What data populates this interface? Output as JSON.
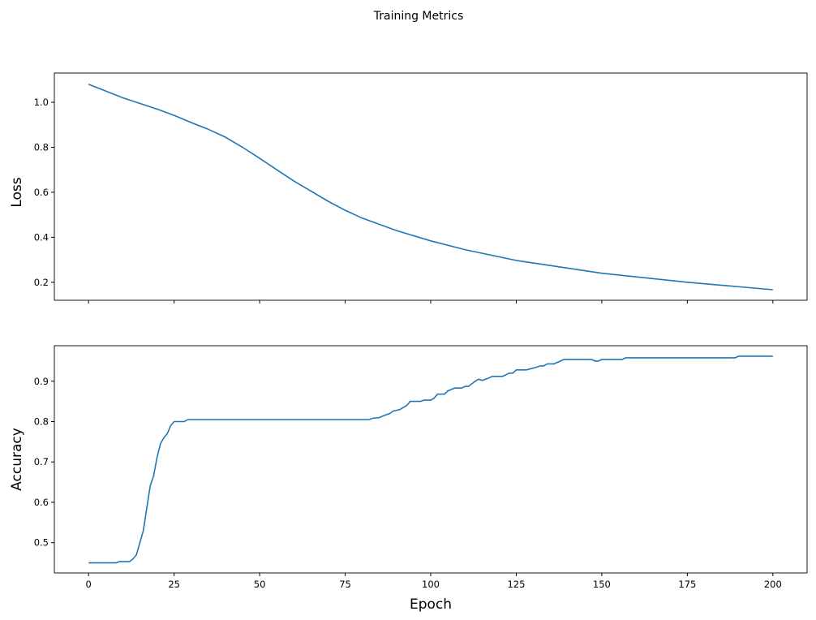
{
  "chart_data": [
    {
      "type": "line",
      "suptitle": "Training Metrics",
      "xlabel": "",
      "ylabel": "Loss",
      "xlim": [
        -10,
        210
      ],
      "ylim": [
        0.12,
        1.13
      ],
      "xticks": [
        0,
        25,
        50,
        75,
        100,
        125,
        150,
        175,
        200
      ],
      "yticks": [
        0.2,
        0.4,
        0.6,
        0.8,
        1.0
      ],
      "ytick_labels": [
        "0.2",
        "0.4",
        "0.6",
        "0.8",
        "1.0"
      ],
      "grid": false,
      "color": "#1f77b4",
      "x": [
        0,
        10,
        20,
        25,
        30,
        35,
        40,
        45,
        50,
        55,
        60,
        65,
        70,
        75,
        80,
        90,
        100,
        110,
        125,
        150,
        175,
        200
      ],
      "y": [
        1.08,
        1.02,
        0.97,
        0.942,
        0.91,
        0.88,
        0.845,
        0.8,
        0.751,
        0.7,
        0.65,
        0.605,
        0.56,
        0.52,
        0.485,
        0.43,
        0.384,
        0.345,
        0.297,
        0.24,
        0.2,
        0.167
      ]
    },
    {
      "type": "line",
      "xlabel": "Epoch",
      "ylabel": "Accuracy",
      "xlim": [
        -10,
        210
      ],
      "ylim": [
        0.425,
        0.988
      ],
      "xticks": [
        0,
        25,
        50,
        75,
        100,
        125,
        150,
        175,
        200
      ],
      "xtick_labels": [
        "0",
        "25",
        "50",
        "75",
        "100",
        "125",
        "150",
        "175",
        "200"
      ],
      "yticks": [
        0.5,
        0.6,
        0.7,
        0.8,
        0.9
      ],
      "ytick_labels": [
        "0.5",
        "0.6",
        "0.7",
        "0.8",
        "0.9"
      ],
      "grid": false,
      "color": "#1f77b4",
      "x": [
        0,
        8,
        9,
        12,
        13,
        14,
        16,
        18,
        19,
        20,
        21,
        22,
        23,
        24,
        25,
        28,
        29,
        82,
        83,
        85,
        87,
        88,
        89,
        91,
        93,
        94,
        97,
        98,
        100,
        101,
        102,
        104,
        105,
        107,
        109,
        110,
        111,
        113,
        114,
        115,
        117,
        118,
        121,
        123,
        124,
        125,
        128,
        131,
        132,
        133,
        134,
        136,
        139,
        147,
        148,
        149,
        150,
        156,
        157,
        189,
        190,
        200
      ],
      "y": [
        0.45,
        0.45,
        0.453,
        0.453,
        0.46,
        0.47,
        0.53,
        0.64,
        0.665,
        0.71,
        0.745,
        0.76,
        0.77,
        0.79,
        0.8,
        0.8,
        0.805,
        0.805,
        0.808,
        0.81,
        0.817,
        0.82,
        0.826,
        0.83,
        0.84,
        0.85,
        0.85,
        0.853,
        0.853,
        0.858,
        0.868,
        0.868,
        0.876,
        0.883,
        0.883,
        0.887,
        0.887,
        0.9,
        0.905,
        0.902,
        0.908,
        0.912,
        0.912,
        0.92,
        0.92,
        0.928,
        0.928,
        0.935,
        0.938,
        0.938,
        0.943,
        0.943,
        0.954,
        0.954,
        0.95,
        0.95,
        0.954,
        0.954,
        0.958,
        0.958,
        0.962,
        0.962
      ]
    }
  ]
}
